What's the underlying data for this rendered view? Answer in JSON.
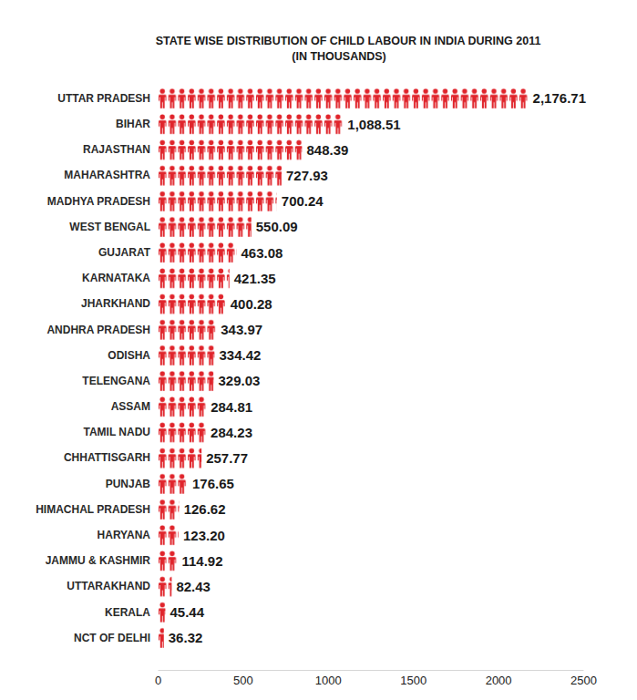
{
  "chart_data": {
    "type": "bar",
    "title": "STATE WISE DISTRIBUTION OF CHILD LABOUR IN INDIA DURING 2011",
    "subtitle": "(IN THOUSANDS)",
    "orientation": "horizontal",
    "categories": [
      "UTTAR PRADESH",
      "BIHAR",
      "RAJASTHAN",
      "MAHARASHTRA",
      "MADHYA PRADESH",
      "WEST BENGAL",
      "GUJARAT",
      "KARNATAKA",
      "JHARKHAND",
      "ANDHRA PRADESH",
      "ODISHA",
      "TELENGANA",
      "ASSAM",
      "TAMIL NADU",
      "CHHATTISGARH",
      "PUNJAB",
      "HIMACHAL PRADESH",
      "HARYANA",
      "JAMMU & KASHMIR",
      "UTTARAKHAND",
      "KERALA",
      "NCT OF DELHI"
    ],
    "values": [
      2176.71,
      1088.51,
      848.39,
      727.93,
      700.24,
      550.09,
      463.08,
      421.35,
      400.28,
      343.97,
      334.42,
      329.03,
      284.81,
      284.23,
      257.77,
      176.65,
      126.62,
      123.2,
      114.92,
      82.43,
      45.44,
      36.32
    ],
    "value_labels": [
      "2,176.71",
      "1,088.51",
      "848.39",
      "727.93",
      "700.24",
      "550.09",
      "463.08",
      "421.35",
      "400.28",
      "343.97",
      "334.42",
      "329.03",
      "284.81",
      "284.23",
      "257.77",
      "176.65",
      "126.62",
      "123.20",
      "114.92",
      "82.43",
      "45.44",
      "36.32"
    ],
    "color": "#e0242b",
    "xlim": [
      0,
      2500
    ],
    "xticks": [
      0,
      500,
      1000,
      1500,
      2000,
      2500
    ],
    "grid": false,
    "data_labels": true
  }
}
